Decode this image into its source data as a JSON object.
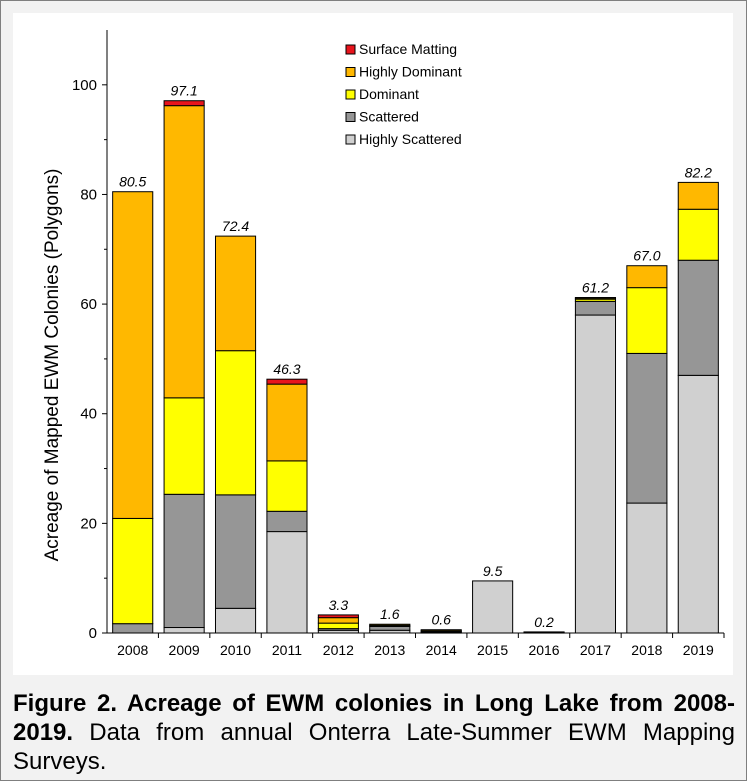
{
  "caption": {
    "bold": "Figure 2.  Acreage of EWM colonies in Long Lake from 2008-2019.",
    "normal": "  Data from annual Onterra Late-Summer EWM Mapping Surveys."
  },
  "colors": {
    "Surface Matting": "#e8141c",
    "Highly Dominant": "#ffb800",
    "Dominant": "#ffff00",
    "Scattered": "#969696",
    "Highly Scattered": "#d0d0d0"
  },
  "chart_data": {
    "type": "bar",
    "stacked": true,
    "title": "",
    "xlabel": "",
    "ylabel": "Acreage of Mapped EWM Colonies (Polygons)",
    "ylim": [
      0,
      110
    ],
    "yticks": [
      0,
      20,
      40,
      60,
      80,
      100
    ],
    "categories": [
      "2008",
      "2009",
      "2010",
      "2011",
      "2012",
      "2013",
      "2014",
      "2015",
      "2016",
      "2017",
      "2018",
      "2019"
    ],
    "series": [
      {
        "name": "Highly Scattered",
        "values": [
          0,
          1.0,
          4.5,
          18.5,
          0.5,
          0.5,
          0.1,
          9.5,
          0.1,
          58.0,
          23.7,
          47.0
        ]
      },
      {
        "name": "Scattered",
        "values": [
          1.7,
          24.3,
          20.7,
          3.7,
          0.3,
          0.7,
          0.2,
          0,
          0.1,
          2.5,
          27.3,
          21.0
        ]
      },
      {
        "name": "Dominant",
        "values": [
          19.2,
          17.6,
          26.3,
          9.2,
          1.0,
          0.2,
          0.1,
          0,
          0,
          0.4,
          12.0,
          9.3
        ]
      },
      {
        "name": "Highly Dominant",
        "values": [
          59.6,
          53.3,
          20.9,
          14.0,
          1.0,
          0.2,
          0.2,
          0,
          0,
          0.2,
          4.0,
          4.9
        ]
      },
      {
        "name": "Surface Matting",
        "values": [
          0,
          0.9,
          0,
          0.9,
          0.5,
          0,
          0,
          0,
          0,
          0.1,
          0,
          0
        ]
      }
    ],
    "totals": [
      "80.5",
      "97.1",
      "72.4",
      "46.3",
      "3.3",
      "1.6",
      "0.6",
      "9.5",
      "0.2",
      "61.2",
      "67.0",
      "82.2"
    ],
    "legend": {
      "placement": "top-center",
      "entries": [
        "Surface Matting",
        "Highly Dominant",
        "Dominant",
        "Scattered",
        "Highly Scattered"
      ]
    },
    "grid": false
  }
}
